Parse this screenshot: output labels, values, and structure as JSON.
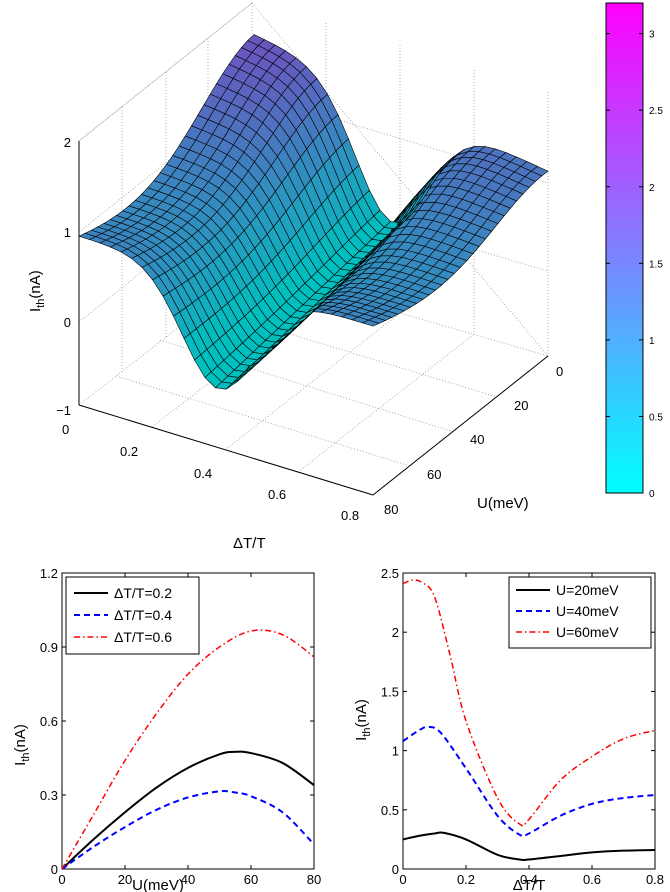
{
  "chart_data": [
    {
      "type": "surface",
      "zlabel": "I",
      "zlabel_sub": "th",
      "zlabel_unit": "(nA)",
      "xlabel": "ΔT/T",
      "ylabel": "U(meV)",
      "x_ticks": [
        "0",
        "0.2",
        "0.4",
        "0.6",
        "0.8"
      ],
      "y_ticks": [
        "0",
        "20",
        "40",
        "60",
        "80"
      ],
      "z_ticks": [
        "−1",
        "0",
        "1",
        "2"
      ],
      "x_range": [
        0,
        0.8
      ],
      "y_range": [
        0,
        80
      ],
      "z_range": [
        -1,
        2
      ],
      "grid": true,
      "colormap": "cool",
      "colorbar_ticks": [
        "0",
        "0.5",
        "1",
        "1.5",
        "2",
        "2.5",
        "3"
      ],
      "colorbar_range": [
        0,
        3.2
      ],
      "colors": {
        "low": "#00ffff",
        "high": "#ff00ff"
      }
    },
    {
      "type": "line",
      "xlabel": "U(meV)",
      "ylabel": "I",
      "ylabel_sub": "th",
      "ylabel_unit": "(nA)",
      "x_ticks": [
        "0",
        "20",
        "40",
        "60",
        "80"
      ],
      "y_ticks": [
        "0",
        "0.3",
        "0.6",
        "0.9",
        "1.2"
      ],
      "xlim": [
        0,
        80
      ],
      "ylim": [
        0,
        1.2
      ],
      "legend_position": "top-left",
      "series": [
        {
          "name": "ΔT/T=0.2",
          "color": "#000000",
          "style": "solid",
          "x": [
            0,
            10,
            20,
            30,
            40,
            50,
            55,
            60,
            70,
            80
          ],
          "y": [
            0,
            0.12,
            0.23,
            0.33,
            0.41,
            0.465,
            0.475,
            0.47,
            0.43,
            0.34
          ]
        },
        {
          "name": "ΔT/T=0.4",
          "color": "#0000ff",
          "style": "dashed",
          "x": [
            0,
            10,
            20,
            30,
            40,
            50,
            55,
            60,
            70,
            80
          ],
          "y": [
            0,
            0.09,
            0.17,
            0.24,
            0.29,
            0.315,
            0.31,
            0.295,
            0.23,
            0.1
          ]
        },
        {
          "name": "ΔT/T=0.6",
          "color": "#ff0000",
          "style": "dashdot",
          "x": [
            0,
            10,
            20,
            30,
            40,
            50,
            60,
            70,
            80
          ],
          "y": [
            0,
            0.22,
            0.44,
            0.63,
            0.79,
            0.9,
            0.965,
            0.95,
            0.86
          ]
        }
      ]
    },
    {
      "type": "line",
      "xlabel": "ΔT/T",
      "ylabel": "I",
      "ylabel_sub": "th",
      "ylabel_unit": "(nA)",
      "x_ticks": [
        "0",
        "0.2",
        "0.4",
        "0.6",
        "0.8"
      ],
      "y_ticks": [
        "0",
        "0.5",
        "1",
        "1.5",
        "2",
        "2.5"
      ],
      "xlim": [
        0,
        0.8
      ],
      "ylim": [
        0,
        2.5
      ],
      "legend_position": "top-right",
      "series": [
        {
          "name": "U=20meV",
          "color": "#000000",
          "style": "solid",
          "x": [
            0,
            0.05,
            0.1,
            0.13,
            0.2,
            0.3,
            0.37,
            0.4,
            0.5,
            0.6,
            0.7,
            0.8
          ],
          "y": [
            0.25,
            0.28,
            0.3,
            0.305,
            0.25,
            0.12,
            0.08,
            0.08,
            0.11,
            0.14,
            0.155,
            0.16
          ]
        },
        {
          "name": "U=40meV",
          "color": "#0000ff",
          "style": "dashed",
          "x": [
            0,
            0.05,
            0.08,
            0.12,
            0.2,
            0.3,
            0.37,
            0.4,
            0.5,
            0.6,
            0.7,
            0.8
          ],
          "y": [
            1.08,
            1.17,
            1.2,
            1.15,
            0.85,
            0.45,
            0.29,
            0.3,
            0.45,
            0.55,
            0.6,
            0.625
          ]
        },
        {
          "name": "U=60meV",
          "color": "#ff0000",
          "style": "dashdot",
          "x": [
            0,
            0.03,
            0.06,
            0.1,
            0.15,
            0.2,
            0.3,
            0.37,
            0.4,
            0.5,
            0.6,
            0.7,
            0.8
          ],
          "y": [
            2.41,
            2.44,
            2.42,
            2.3,
            1.8,
            1.25,
            0.6,
            0.38,
            0.42,
            0.75,
            0.95,
            1.1,
            1.17
          ]
        }
      ]
    }
  ]
}
